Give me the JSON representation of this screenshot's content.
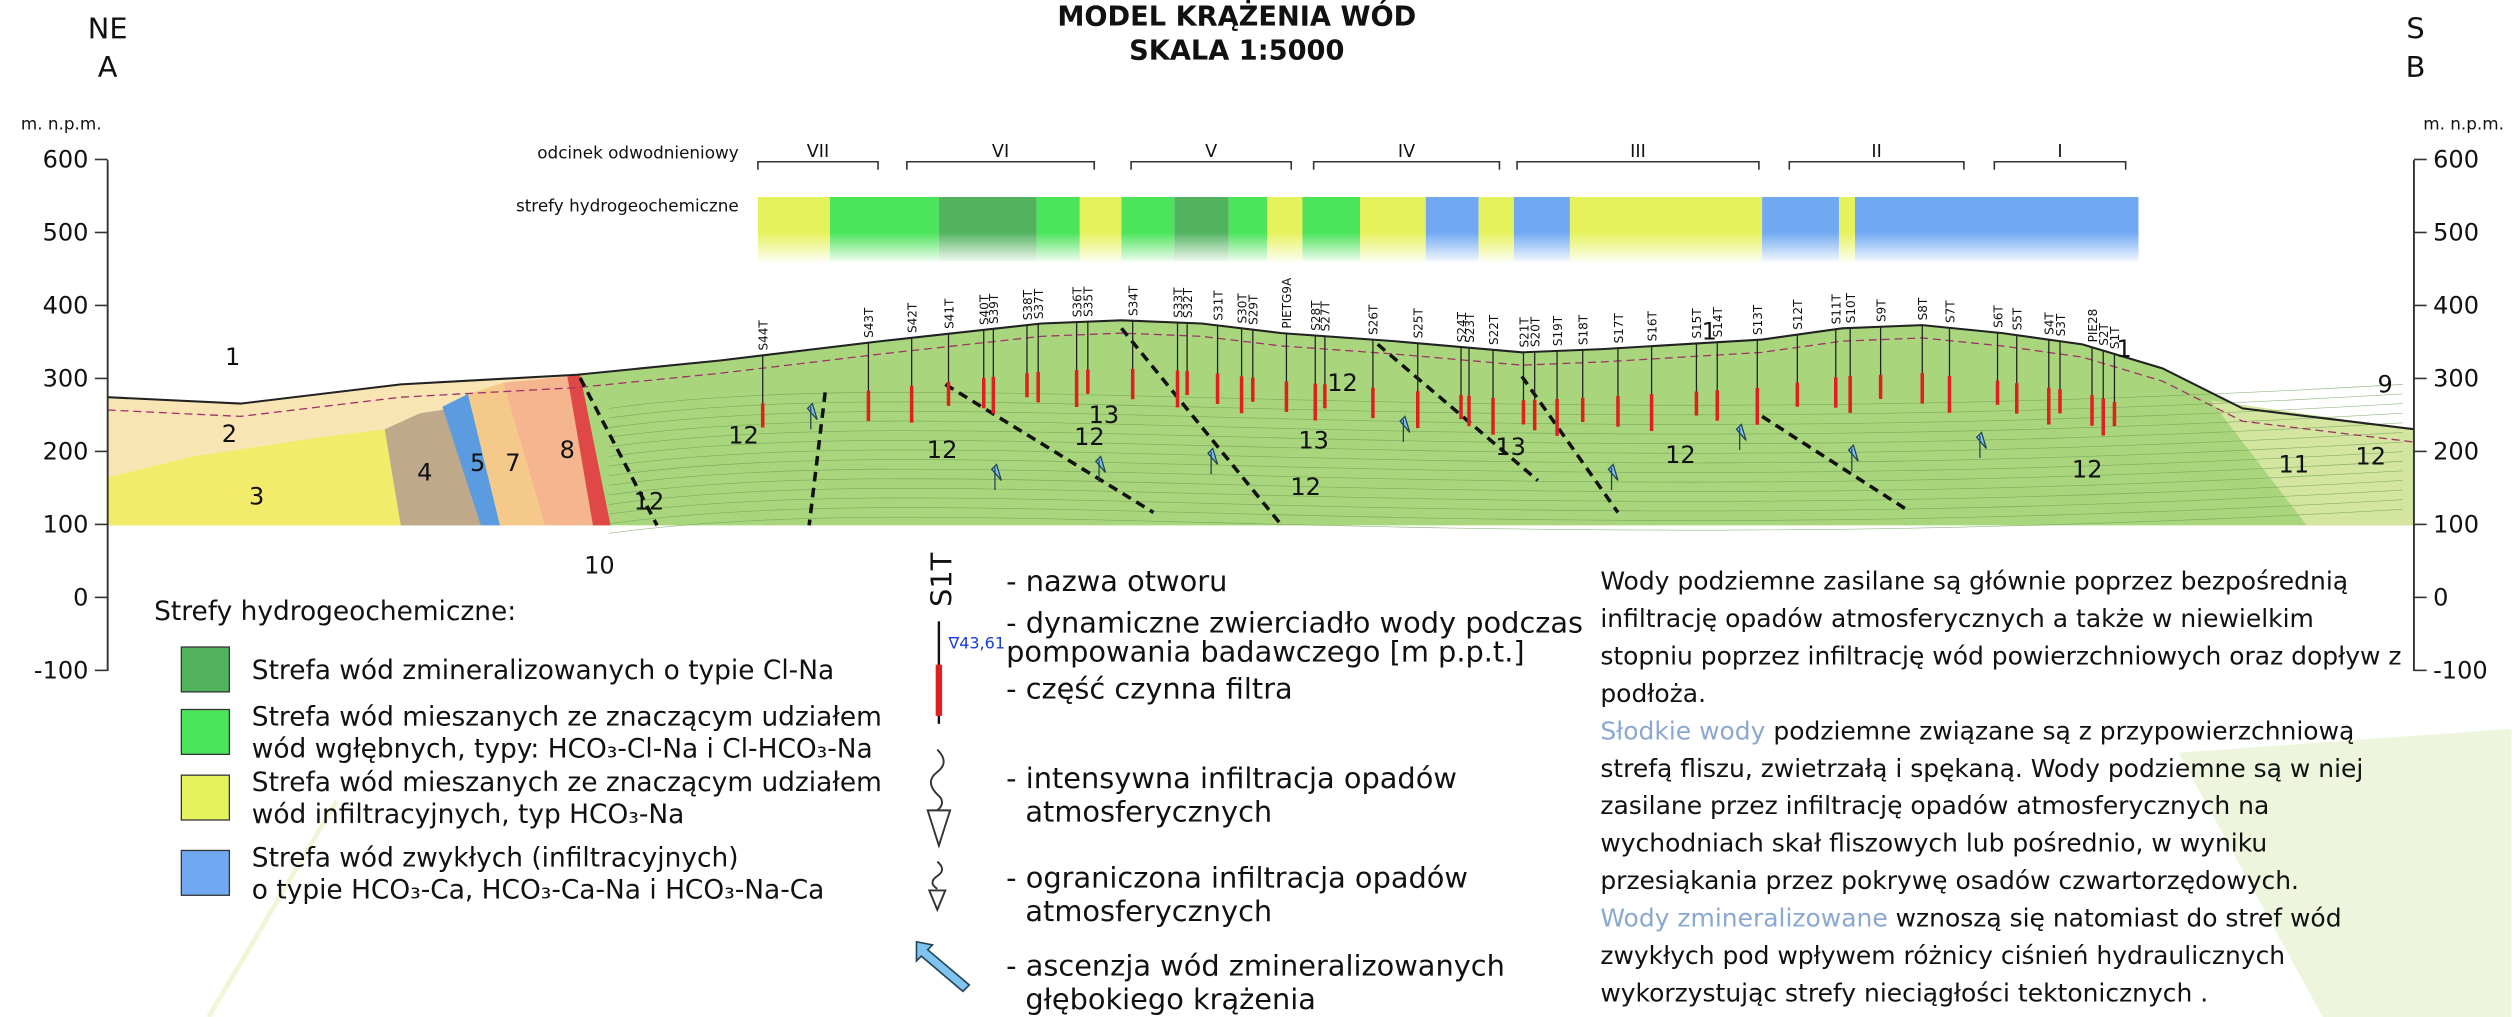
{
  "header": {
    "left_dir": "NE",
    "left_point": "A",
    "title": "MODEL KRĄŻENIA WÓD",
    "scale": "SKALA 1:5000",
    "right_dir": "S",
    "right_point": "B"
  },
  "axis": {
    "unit": "m. n.p.m.",
    "ticks": [
      600,
      500,
      400,
      300,
      200,
      100,
      0,
      -100
    ]
  },
  "rows": {
    "sections_label": "odcinek odwodnieniowy",
    "zones_label": "strefy hydrogeochemiczne"
  },
  "sections": [
    "VII",
    "VI",
    "V",
    "IV",
    "III",
    "II",
    "I"
  ],
  "wells": [
    "S44T",
    "S43T",
    "S42T",
    "S41T",
    "S40T",
    "S39T",
    "S38T",
    "S37T",
    "S36T",
    "S35T",
    "S34T",
    "S33T",
    "S32T",
    "S31T",
    "S30T",
    "S29T",
    "PIETG9A",
    "S28T",
    "S27T",
    "S26T",
    "S25T",
    "S24T",
    "S23T",
    "S22T",
    "S21T",
    "S20T",
    "S19T",
    "S18T",
    "S17T",
    "S16T",
    "S15T",
    "S14T",
    "S13T",
    "S12T",
    "S11T",
    "S10T",
    "S9T",
    "S8T",
    "S7T",
    "S6T",
    "S5T",
    "S4T",
    "S3T",
    "PIE28",
    "S2T",
    "S1T"
  ],
  "zone_labels": [
    "1",
    "1",
    "1",
    "2",
    "3",
    "4",
    "5",
    "7",
    "8",
    "10",
    "12",
    "12",
    "12",
    "12",
    "12",
    "12",
    "12",
    "12",
    "12",
    "13",
    "13",
    "13",
    "11",
    "9"
  ],
  "legend": {
    "title": "Strefy hydrogeochemiczne:",
    "items": [
      {
        "color": "#52b35f",
        "lines": [
          "Strefa wód zmineralizowanych o typie Cl-Na"
        ]
      },
      {
        "color": "#4be45a",
        "lines": [
          "Strefa wód mieszanych ze znaczącym udziałem",
          "wód wgłębnych, typy: HCO₃-Cl-Na i Cl-HCO₃-Na"
        ]
      },
      {
        "color": "#e6f25c",
        "lines": [
          "Strefa wód mieszanych ze znaczącym udziałem",
          "wód infiltracyjnych, typ HCO₃-Na"
        ]
      },
      {
        "color": "#70a9f2",
        "lines": [
          "Strefa wód zwykłych (infiltracyjnych)",
          "o typie HCO₃-Ca, HCO₃-Ca-Na i HCO₃-Na-Ca"
        ]
      }
    ]
  },
  "symbols": {
    "well_name": "S1T",
    "water_level": "∇43,61",
    "lines": [
      "- nazwa otworu",
      "- dynamiczne zwierciadło wody podczas",
      " pompowania badawczego [m p.p.t.]",
      "- część czynna filtra",
      "- intensywna infiltracja opadów",
      "atmosferycznych",
      "- ograniczona infiltracja opadów",
      "atmosferycznych",
      "- ascenzja wód zmineralizowanych",
      "głębokiego krążenia"
    ]
  },
  "description": {
    "lines": [
      "Wody podziemne zasilane są głównie poprzez bezpośrednią",
      "infiltrację opadów atmosferycznych a także w niewielkim",
      "stopniu poprzez infiltrację wód powierzchniowych oraz dopływ z",
      "podłoża.",
      {
        "accent": "Słodkie wody",
        "rest": " podziemne związane są z przypowierzchniową"
      },
      "strefą fliszu, zwietrzałą i spękaną. Wody podziemne są w niej",
      "zasilane przez infiltrację opadów atmosferycznych na",
      "wychodniach skał fliszowych lub pośrednio, w wyniku",
      "przesiąkania przez pokrywę osadów czwartorzędowych.",
      {
        "accent": "Wody zmineralizowane",
        "rest": " wznoszą się natomiast do stref wód"
      },
      "zwykłych pod wpływem różnicy ciśnień hydraulicznych",
      "wykorzystując strefy nieciągłości tektonicznych ."
    ]
  }
}
